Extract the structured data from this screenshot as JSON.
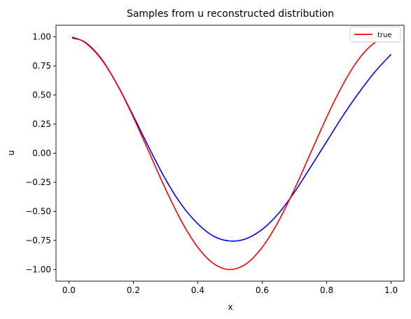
{
  "chart_data": {
    "type": "line",
    "title": "Samples from u reconstructed distribution",
    "xlabel": "x",
    "ylabel": "u",
    "xlim": [
      -0.04,
      1.04
    ],
    "ylim": [
      -1.1,
      1.1
    ],
    "xticks": [
      0.0,
      0.2,
      0.4,
      0.6,
      0.8,
      1.0
    ],
    "xtick_labels": [
      "0.0",
      "0.2",
      "0.4",
      "0.6",
      "0.8",
      "1.0"
    ],
    "yticks": [
      -1.0,
      -0.75,
      -0.5,
      -0.25,
      0.0,
      0.25,
      0.5,
      0.75,
      1.0
    ],
    "ytick_labels": [
      "−1.00",
      "−0.75",
      "−0.50",
      "−0.25",
      "0.00",
      "0.25",
      "0.50",
      "0.75",
      "1.00"
    ],
    "grid": false,
    "legend": {
      "placement": "top-right",
      "entries": [
        "true"
      ]
    },
    "series": [
      {
        "name": "true",
        "color": "#ff0000",
        "x": [
          0.01,
          0.05,
          0.1,
          0.15,
          0.2,
          0.25,
          0.3,
          0.35,
          0.4,
          0.45,
          0.5,
          0.55,
          0.6,
          0.65,
          0.7,
          0.75,
          0.8,
          0.85,
          0.9,
          0.95,
          1.0
        ],
        "y": [
          0.998,
          0.951,
          0.81,
          0.588,
          0.309,
          0.0,
          -0.309,
          -0.588,
          -0.809,
          -0.951,
          -1.0,
          -0.951,
          -0.809,
          -0.588,
          -0.309,
          0.0,
          0.309,
          0.588,
          0.81,
          0.951,
          1.0
        ]
      },
      {
        "color": "#0000ff",
        "x": [
          0.01,
          0.05,
          0.1,
          0.15,
          0.2,
          0.25,
          0.3,
          0.35,
          0.4,
          0.45,
          0.5,
          0.55,
          0.6,
          0.65,
          0.7,
          0.75,
          0.8,
          0.85,
          0.9,
          0.95,
          1.0
        ],
        "y": [
          0.99,
          0.955,
          0.815,
          0.59,
          0.32,
          0.04,
          -0.225,
          -0.445,
          -0.607,
          -0.715,
          -0.755,
          -0.735,
          -0.655,
          -0.52,
          -0.335,
          -0.12,
          0.1,
          0.32,
          0.52,
          0.7,
          0.85
        ]
      }
    ]
  }
}
